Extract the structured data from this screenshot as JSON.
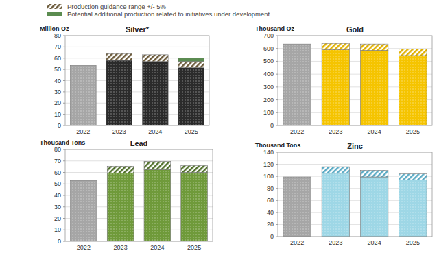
{
  "chart_data": [
    {
      "type": "bar",
      "title": "Silver*",
      "y_label": "Million Oz",
      "stacked": true,
      "grid": true,
      "categories": [
        "2022",
        "2023",
        "2024",
        "2025"
      ],
      "ylim": [
        0,
        80
      ],
      "yticks": [
        0,
        10,
        20,
        30,
        40,
        50,
        60,
        70,
        80
      ],
      "series": [
        {
          "colors": [
            "#a6a6a6",
            "#2b2b2b",
            "#2b2b2b",
            "#2b2b2b"
          ],
          "values": [
            53.5,
            58,
            57,
            51.5
          ]
        },
        {
          "name": "Production guidance range +/- 5%",
          "color": "#6b5a3a",
          "values": [
            null,
            6,
            6,
            5.5
          ]
        },
        {
          "name": "Potential additional production related to initiatives under development",
          "color": "#5b8c50",
          "values": [
            null,
            null,
            null,
            3
          ]
        }
      ]
    },
    {
      "type": "bar",
      "title": "Gold",
      "y_label": "Thousand Oz",
      "stacked": true,
      "grid": true,
      "categories": [
        "2022",
        "2023",
        "2024",
        "2025"
      ],
      "ylim": [
        0,
        700
      ],
      "yticks": [
        0,
        100,
        200,
        300,
        400,
        500,
        600,
        700
      ],
      "series": [
        {
          "colors": [
            "#a6a6a6",
            "#f5c400",
            "#f5c400",
            "#f5c400"
          ],
          "values": [
            635,
            590,
            585,
            545
          ]
        },
        {
          "color": "#e0b000",
          "values": [
            null,
            50,
            50,
            50
          ]
        }
      ]
    },
    {
      "type": "bar",
      "title": "Lead",
      "y_label": "Thousand Tons",
      "stacked": true,
      "grid": true,
      "categories": [
        "2022",
        "2023",
        "2024",
        "2025"
      ],
      "ylim": [
        0,
        80
      ],
      "yticks": [
        0,
        10,
        20,
        30,
        40,
        50,
        60,
        70,
        80
      ],
      "series": [
        {
          "colors": [
            "#a6a6a6",
            "#6f9a3a",
            "#6f9a3a",
            "#6f9a3a"
          ],
          "values": [
            53,
            59.5,
            62.5,
            60
          ]
        },
        {
          "color": "#4f6f2a",
          "values": [
            null,
            6,
            7,
            6
          ]
        }
      ]
    },
    {
      "type": "bar",
      "title": "Zinc",
      "y_label": "Thousand Tons",
      "stacked": true,
      "grid": true,
      "categories": [
        "2022",
        "2023",
        "2024",
        "2025"
      ],
      "ylim": [
        0,
        140
      ],
      "yticks": [
        0,
        20,
        40,
        60,
        80,
        100,
        120,
        140
      ],
      "series": [
        {
          "colors": [
            "#a6a6a6",
            "#9ed7e6",
            "#9ed7e6",
            "#9ed7e6"
          ],
          "values": [
            99,
            105,
            99,
            94
          ]
        },
        {
          "color": "#5aaac4",
          "values": [
            null,
            11,
            11,
            10
          ]
        }
      ]
    }
  ]
}
